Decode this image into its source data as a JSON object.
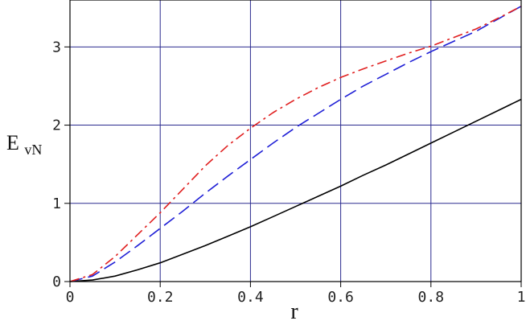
{
  "chart_data": {
    "type": "line",
    "title": "",
    "xlabel": "r",
    "ylabel": "E",
    "ylabel_subscript": "vN",
    "xlim": [
      0,
      1
    ],
    "ylim": [
      0,
      3.6
    ],
    "grid": true,
    "x_ticks": [
      0,
      0.2,
      0.4,
      0.6,
      0.8,
      1
    ],
    "x_tick_labels": [
      "0",
      "0.2",
      "0.4",
      "0.6",
      "0.8",
      "1"
    ],
    "y_ticks": [
      0,
      1,
      2,
      3
    ],
    "y_tick_labels": [
      "0",
      "1",
      "2",
      "3"
    ],
    "colors": {
      "grid": "#2b2b8f",
      "frame": "#000000"
    },
    "series": [
      {
        "color": "#000000",
        "style": "solid",
        "x": [
          0,
          0.05,
          0.1,
          0.15,
          0.2,
          0.25,
          0.3,
          0.35,
          0.4,
          0.45,
          0.5,
          0.55,
          0.6,
          0.65,
          0.7,
          0.75,
          0.8,
          0.85,
          0.9,
          0.95,
          1.0
        ],
        "y": [
          0,
          0.02,
          0.07,
          0.15,
          0.24,
          0.35,
          0.46,
          0.58,
          0.7,
          0.83,
          0.96,
          1.09,
          1.22,
          1.36,
          1.49,
          1.63,
          1.77,
          1.91,
          2.05,
          2.19,
          2.33
        ]
      },
      {
        "color": "#1f1fd6",
        "style": "dashed",
        "x": [
          0,
          0.05,
          0.1,
          0.15,
          0.2,
          0.25,
          0.3,
          0.35,
          0.4,
          0.45,
          0.5,
          0.55,
          0.6,
          0.65,
          0.7,
          0.75,
          0.8,
          0.85,
          0.9,
          0.95,
          1.0
        ],
        "y": [
          0,
          0.07,
          0.25,
          0.46,
          0.68,
          0.9,
          1.13,
          1.35,
          1.56,
          1.77,
          1.97,
          2.15,
          2.33,
          2.5,
          2.65,
          2.8,
          2.94,
          3.07,
          3.2,
          3.36,
          3.52
        ]
      },
      {
        "color": "#e01f1f",
        "style": "dashdot",
        "x": [
          0,
          0.05,
          0.1,
          0.15,
          0.2,
          0.25,
          0.3,
          0.35,
          0.4,
          0.45,
          0.5,
          0.55,
          0.6,
          0.65,
          0.7,
          0.75,
          0.8,
          0.85,
          0.9,
          0.95,
          1.0
        ],
        "y": [
          0,
          0.09,
          0.32,
          0.6,
          0.88,
          1.18,
          1.48,
          1.74,
          1.96,
          2.16,
          2.33,
          2.48,
          2.61,
          2.72,
          2.82,
          2.92,
          3.01,
          3.12,
          3.23,
          3.37,
          3.52
        ]
      }
    ]
  }
}
